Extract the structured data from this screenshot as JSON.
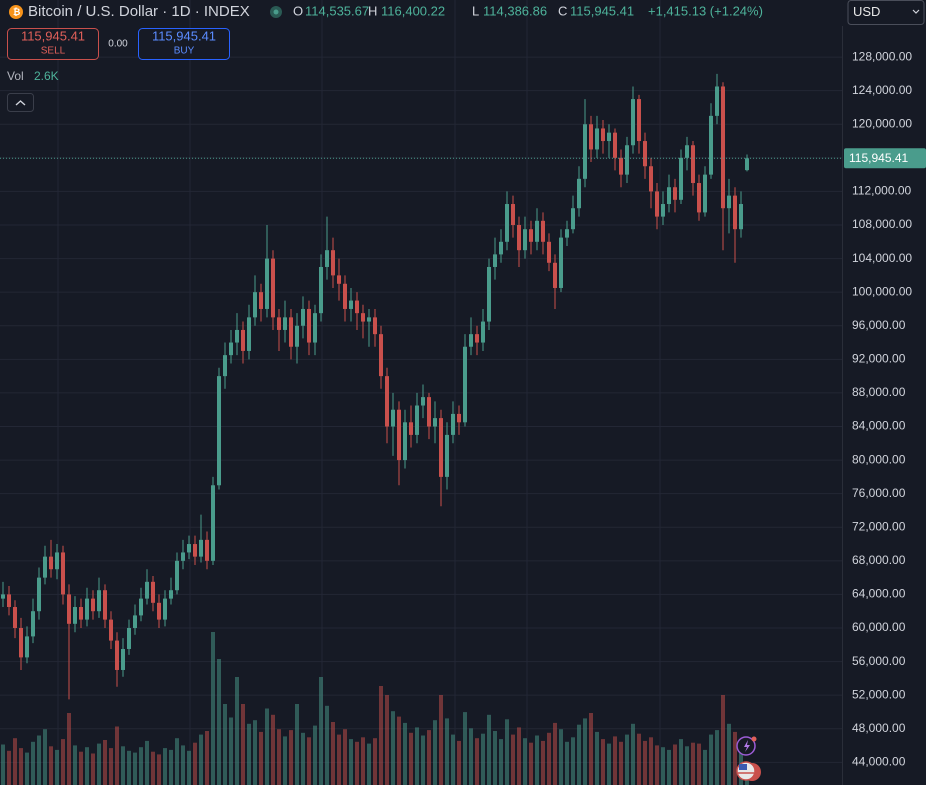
{
  "header": {
    "title": "Bitcoin / U.S. Dollar · 1D · INDEX",
    "open_label": "O",
    "open": "114,535.67",
    "high_label": "H",
    "high": "116,400.22",
    "low_label": "L",
    "low": "114,386.86",
    "close_label": "C",
    "close": "115,945.41",
    "change": "+1,415.13 (+1.24%)",
    "currency": "USD"
  },
  "trade": {
    "sell_price": "115,945.41",
    "sell_label": "SELL",
    "spread": "0.00",
    "buy_price": "115,945.41",
    "buy_label": "BUY"
  },
  "volume_legend": {
    "label": "Vol",
    "value": "2.6K"
  },
  "chart_data": {
    "type": "candlestick",
    "up_color": "#4a9c8c",
    "down_color": "#c9504c",
    "grid": true,
    "ylim": [
      41300,
      134800
    ],
    "yticks": [
      {
        "value": 44000,
        "label": "44,000.00"
      },
      {
        "value": 48000,
        "label": "48,000.00"
      },
      {
        "value": 52000,
        "label": "52,000.00"
      },
      {
        "value": 56000,
        "label": "56,000.00"
      },
      {
        "value": 60000,
        "label": "60,000.00"
      },
      {
        "value": 64000,
        "label": "64,000.00"
      },
      {
        "value": 68000,
        "label": "68,000.00"
      },
      {
        "value": 72000,
        "label": "72,000.00"
      },
      {
        "value": 76000,
        "label": "76,000.00"
      },
      {
        "value": 80000,
        "label": "80,000.00"
      },
      {
        "value": 84000,
        "label": "84,000.00"
      },
      {
        "value": 88000,
        "label": "88,000.00"
      },
      {
        "value": 92000,
        "label": "92,000.00"
      },
      {
        "value": 96000,
        "label": "96,000.00"
      },
      {
        "value": 100000,
        "label": "100,000.00"
      },
      {
        "value": 104000,
        "label": "104,000.00"
      },
      {
        "value": 108000,
        "label": "108,000.00"
      },
      {
        "value": 112000,
        "label": "112,000.00"
      },
      {
        "value": 116000,
        "label": "116,000.00"
      },
      {
        "value": 120000,
        "label": "120,000.00"
      },
      {
        "value": 124000,
        "label": "124,000.00"
      },
      {
        "value": 128000,
        "label": "128,000.00"
      }
    ],
    "last_price": {
      "value": 115945.41,
      "label": "115,945.41"
    },
    "volume_lim": [
      0,
      20000
    ],
    "candles": [
      [
        63500,
        65500,
        62500,
        64000
      ],
      [
        64000,
        65000,
        61500,
        62500
      ],
      [
        62500,
        63300,
        58800,
        60000
      ],
      [
        60000,
        61200,
        55000,
        56500
      ],
      [
        56500,
        60200,
        55800,
        59000
      ],
      [
        59000,
        63500,
        58200,
        62000
      ],
      [
        62000,
        67200,
        61000,
        66000
      ],
      [
        66000,
        69800,
        65200,
        68500
      ],
      [
        68500,
        70500,
        66000,
        67000
      ],
      [
        67000,
        70000,
        65800,
        69000
      ],
      [
        69000,
        69800,
        62800,
        64000
      ],
      [
        64000,
        65200,
        51500,
        60500
      ],
      [
        60500,
        63800,
        59500,
        62500
      ],
      [
        62500,
        63500,
        60000,
        61000
      ],
      [
        61000,
        64800,
        60200,
        63500
      ],
      [
        63500,
        64500,
        61000,
        62000
      ],
      [
        62000,
        66000,
        61200,
        64500
      ],
      [
        64500,
        65200,
        60000,
        61000
      ],
      [
        61000,
        62000,
        57500,
        58500
      ],
      [
        58500,
        59500,
        53000,
        55000
      ],
      [
        55000,
        58800,
        54200,
        57500
      ],
      [
        57500,
        61000,
        56800,
        60000
      ],
      [
        60000,
        62800,
        59200,
        61500
      ],
      [
        61500,
        64800,
        60800,
        63500
      ],
      [
        63500,
        67000,
        62800,
        65500
      ],
      [
        65500,
        66200,
        62000,
        63000
      ],
      [
        63000,
        64000,
        60000,
        61000
      ],
      [
        61000,
        64500,
        60200,
        63500
      ],
      [
        63500,
        66000,
        62800,
        64500
      ],
      [
        64500,
        69000,
        64000,
        68000
      ],
      [
        68000,
        70500,
        67000,
        69000
      ],
      [
        69000,
        71000,
        68200,
        70000
      ],
      [
        70000,
        71000,
        67500,
        68500
      ],
      [
        68500,
        73500,
        67800,
        70500
      ],
      [
        70500,
        71500,
        67000,
        68000
      ],
      [
        68000,
        78000,
        67500,
        77000
      ],
      [
        77000,
        91000,
        76500,
        90000
      ],
      [
        90000,
        94000,
        88500,
        92500
      ],
      [
        92500,
        95500,
        91500,
        94000
      ],
      [
        94000,
        97500,
        92500,
        95500
      ],
      [
        95500,
        96500,
        91500,
        93000
      ],
      [
        93000,
        98500,
        92000,
        97000
      ],
      [
        97000,
        102000,
        96000,
        100000
      ],
      [
        100000,
        101000,
        96500,
        98000
      ],
      [
        98000,
        108000,
        97000,
        104000
      ],
      [
        104000,
        105000,
        95500,
        97000
      ],
      [
        97000,
        98000,
        93000,
        95500
      ],
      [
        95500,
        99000,
        94000,
        97000
      ],
      [
        97000,
        98000,
        92000,
        93500
      ],
      [
        93500,
        97500,
        91500,
        96000
      ],
      [
        96000,
        99500,
        94500,
        98000
      ],
      [
        98000,
        99000,
        92500,
        94000
      ],
      [
        94000,
        98500,
        92500,
        97500
      ],
      [
        97500,
        104500,
        96500,
        103000
      ],
      [
        103000,
        109000,
        101500,
        105000
      ],
      [
        105000,
        106500,
        100500,
        102000
      ],
      [
        102000,
        104000,
        99000,
        101000
      ],
      [
        101000,
        102000,
        96500,
        98000
      ],
      [
        98000,
        100500,
        96500,
        99000
      ],
      [
        99000,
        100000,
        95500,
        97500
      ],
      [
        97500,
        98500,
        94500,
        96500
      ],
      [
        96500,
        98000,
        93500,
        97000
      ],
      [
        97000,
        98000,
        93500,
        95000
      ],
      [
        95000,
        96000,
        88500,
        90000
      ],
      [
        90000,
        91000,
        82000,
        84000
      ],
      [
        84000,
        88000,
        80500,
        86000
      ],
      [
        86000,
        87000,
        77000,
        80000
      ],
      [
        80000,
        86000,
        79000,
        84500
      ],
      [
        84500,
        86500,
        81500,
        83000
      ],
      [
        83000,
        88000,
        82000,
        86500
      ],
      [
        86500,
        89000,
        85000,
        87500
      ],
      [
        87500,
        88000,
        82500,
        84000
      ],
      [
        84000,
        87000,
        82000,
        85000
      ],
      [
        85000,
        86000,
        74500,
        78000
      ],
      [
        78000,
        84500,
        76500,
        83000
      ],
      [
        83000,
        87000,
        82000,
        85500
      ],
      [
        85500,
        86500,
        83000,
        84500
      ],
      [
        84500,
        95000,
        84000,
        93500
      ],
      [
        93500,
        97000,
        92500,
        95000
      ],
      [
        95000,
        96000,
        92500,
        94000
      ],
      [
        94000,
        98000,
        93000,
        96500
      ],
      [
        96500,
        104000,
        95500,
        103000
      ],
      [
        103000,
        106500,
        101500,
        104500
      ],
      [
        104500,
        107500,
        103500,
        106000
      ],
      [
        106000,
        112000,
        105000,
        110500
      ],
      [
        110500,
        111500,
        106500,
        108000
      ],
      [
        108000,
        109000,
        103000,
        105000
      ],
      [
        105000,
        109000,
        104000,
        107500
      ],
      [
        107500,
        108500,
        104500,
        106000
      ],
      [
        106000,
        110000,
        105000,
        108500
      ],
      [
        108500,
        109500,
        104500,
        106000
      ],
      [
        106000,
        107000,
        102500,
        103500
      ],
      [
        103500,
        104500,
        98000,
        100500
      ],
      [
        100500,
        107500,
        100000,
        106500
      ],
      [
        106500,
        108500,
        105500,
        107500
      ],
      [
        107500,
        111500,
        107000,
        110000
      ],
      [
        110000,
        115000,
        109000,
        113500
      ],
      [
        113500,
        123000,
        112500,
        120000
      ],
      [
        120000,
        121000,
        115500,
        117000
      ],
      [
        117000,
        121000,
        116000,
        119500
      ],
      [
        119500,
        120500,
        116500,
        118000
      ],
      [
        118000,
        120000,
        116000,
        119000
      ],
      [
        119000,
        119500,
        114500,
        116000
      ],
      [
        116000,
        117000,
        112500,
        114000
      ],
      [
        114000,
        118500,
        113000,
        117500
      ],
      [
        117500,
        124500,
        116500,
        123000
      ],
      [
        123000,
        123500,
        116500,
        118000
      ],
      [
        118000,
        119000,
        113500,
        115000
      ],
      [
        115000,
        116000,
        110000,
        112000
      ],
      [
        112000,
        113000,
        107500,
        109000
      ],
      [
        109000,
        112000,
        108000,
        110500
      ],
      [
        110500,
        114000,
        109500,
        112500
      ],
      [
        112500,
        113500,
        109500,
        111000
      ],
      [
        111000,
        117000,
        110500,
        116000
      ],
      [
        116000,
        118500,
        114500,
        117500
      ],
      [
        117500,
        118000,
        111500,
        113000
      ],
      [
        113000,
        114000,
        108500,
        109500
      ],
      [
        109500,
        115000,
        109000,
        114000
      ],
      [
        114000,
        122500,
        113500,
        121000
      ],
      [
        121000,
        126000,
        120000,
        124500
      ],
      [
        124500,
        125000,
        105000,
        110000
      ],
      [
        110000,
        113500,
        107000,
        111500
      ],
      [
        111500,
        112500,
        103500,
        107500
      ],
      [
        107500,
        112000,
        106500,
        110500
      ],
      [
        114535.67,
        116400.22,
        114386.86,
        115945.41
      ]
    ],
    "volumes": [
      4500,
      3800,
      5200,
      4100,
      3600,
      4800,
      5500,
      6200,
      4300,
      3900,
      5100,
      8000,
      4400,
      3700,
      4200,
      3500,
      4600,
      5000,
      4100,
      6500,
      4300,
      3800,
      3600,
      4200,
      4900,
      3700,
      3400,
      4100,
      3900,
      5200,
      4400,
      3800,
      4700,
      5600,
      6000,
      17000,
      14000,
      9000,
      7500,
      12000,
      9000,
      6800,
      7200,
      5900,
      8500,
      7800,
      6200,
      5400,
      6100,
      9000,
      5800,
      5300,
      6600,
      12000,
      8800,
      7000,
      5600,
      6200,
      5100,
      4800,
      5300,
      4600,
      5200,
      11000,
      10000,
      8200,
      7600,
      6900,
      5800,
      6400,
      5500,
      6100,
      7200,
      10000,
      7400,
      5600,
      4900,
      8100,
      6300,
      5200,
      5700,
      7800,
      6000,
      5100,
      7300,
      5600,
      6400,
      5200,
      4700,
      5500,
      4900,
      5800,
      6900,
      6200,
      4800,
      5300,
      6700,
      7400,
      8000,
      5900,
      5100,
      4600,
      5400,
      4800,
      5600,
      6800,
      5700,
      4900,
      5300,
      4400,
      4200,
      3900,
      4500,
      5100,
      4300,
      4700,
      4600,
      3900,
      5600,
      6100,
      10000,
      6800,
      5900,
      4600,
      2600
    ]
  }
}
